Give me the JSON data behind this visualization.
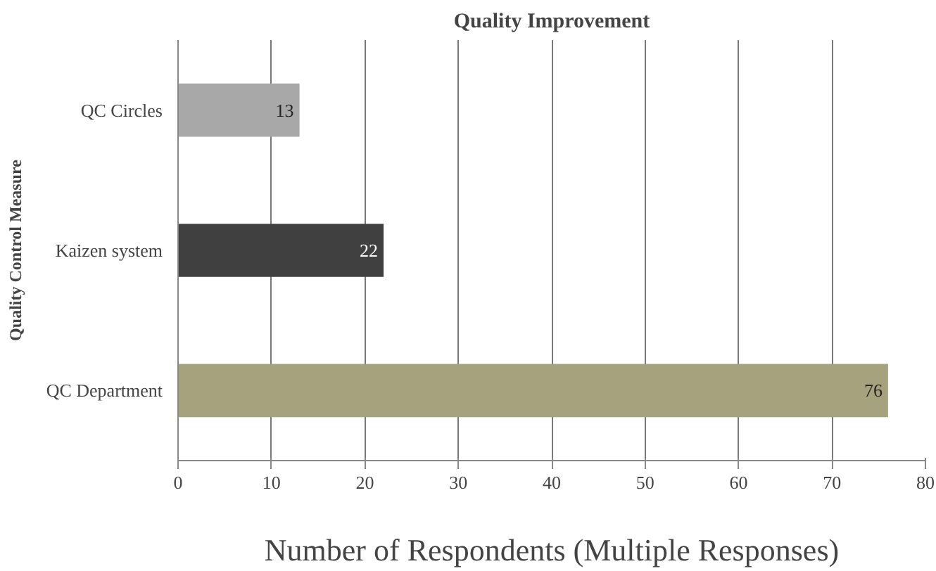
{
  "chart_data": {
    "type": "bar",
    "orientation": "horizontal",
    "title": "Quality Improvement",
    "xlabel": "Number of Respondents (Multiple Responses)",
    "ylabel": "Quality Control Measure",
    "categories": [
      "QC Circles",
      "Kaizen system",
      "QC Department"
    ],
    "values": [
      13,
      22,
      76
    ],
    "colors": [
      "#a8a8a8",
      "#404040",
      "#a6a27e"
    ],
    "xlim": [
      0,
      80
    ],
    "xticks": [
      0,
      10,
      20,
      30,
      40,
      50,
      60,
      70,
      80
    ],
    "grid": "x",
    "data_labels": true
  }
}
